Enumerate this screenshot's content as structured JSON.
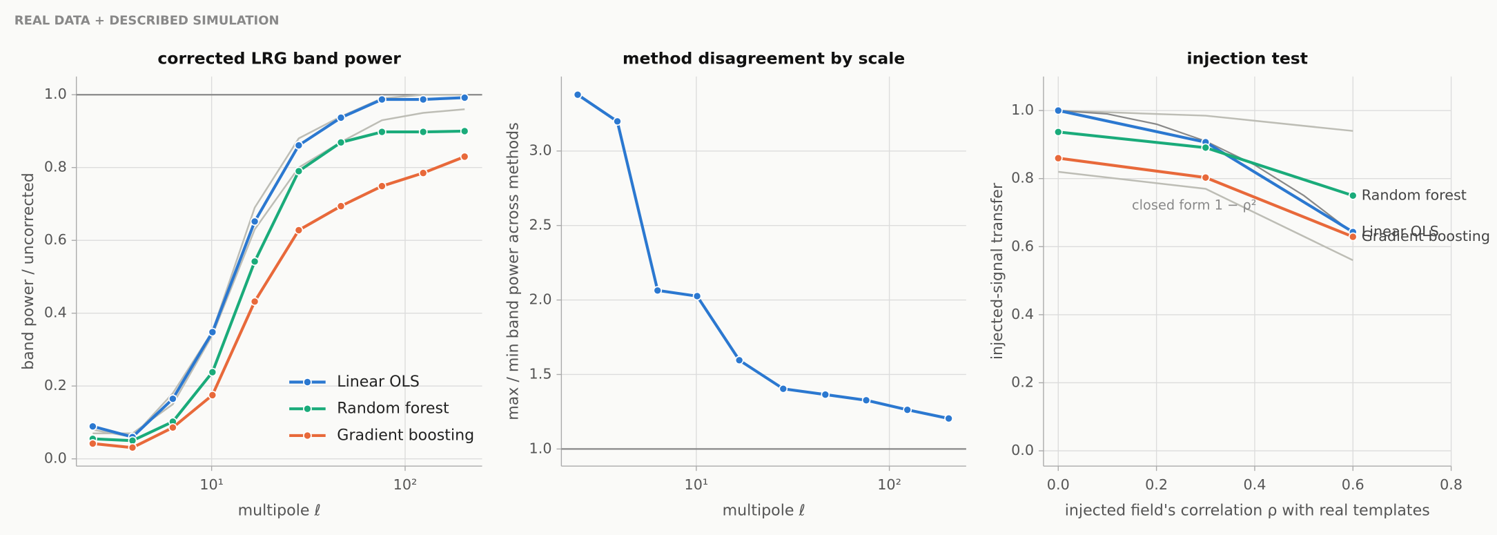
{
  "header": {
    "text": "REAL DATA + DESCRIBED SIMULATION"
  },
  "chart_data": [
    {
      "type": "line",
      "title": "corrected LRG band power",
      "x_label": "multipole ℓ",
      "y_label": "band power / uncorrected",
      "xscale": "log",
      "xlim": [
        2,
        250
      ],
      "ylim": [
        -0.02,
        1.05
      ],
      "xticks": [
        {
          "value": 10,
          "label": "10¹"
        },
        {
          "value": 100,
          "label": "10²"
        }
      ],
      "yticks": [
        {
          "value": 0,
          "label": "0.0"
        },
        0.2,
        0.4,
        0.6,
        0.8,
        {
          "value": 1,
          "label": "1.0"
        }
      ],
      "grid": true,
      "hline": 1,
      "hline_color": "#888888",
      "legend": "lower right",
      "x": [
        2.43,
        3.9,
        6.3,
        10.1,
        16.7,
        28.2,
        46.6,
        75.9,
        124,
        203
      ],
      "reference_series": [
        {
          "color": "#bdbdb5",
          "values": [
            0.08,
            0.06,
            0.18,
            0.35,
            0.69,
            0.88,
            0.94,
            0.99,
            1.0,
            1.0
          ]
        },
        {
          "color": "#bdbdb5",
          "values": [
            0.07,
            0.07,
            0.15,
            0.34,
            0.63,
            0.8,
            0.87,
            0.93,
            0.95,
            0.96
          ]
        }
      ],
      "series": [
        {
          "name": "Linear OLS",
          "color": "#2b78d0",
          "values": [
            0.089,
            0.06,
            0.165,
            0.348,
            0.652,
            0.861,
            0.937,
            0.987,
            0.987,
            0.992
          ]
        },
        {
          "name": "Random forest",
          "color": "#1aab7a",
          "values": [
            0.055,
            0.05,
            0.102,
            0.238,
            0.542,
            0.79,
            0.869,
            0.898,
            0.898,
            0.9
          ]
        },
        {
          "name": "Gradient boosting",
          "color": "#e8693a",
          "values": [
            0.042,
            0.031,
            0.086,
            0.175,
            0.432,
            0.628,
            0.694,
            0.749,
            0.785,
            0.83
          ]
        }
      ]
    },
    {
      "type": "line",
      "title": "method disagreement by scale",
      "x_label": "multipole ℓ",
      "y_label": "max / min band power across methods",
      "xscale": "log",
      "xlim": [
        2,
        250
      ],
      "ylim": [
        0.885,
        3.5
      ],
      "xticks": [
        {
          "value": 10,
          "label": "10¹"
        },
        {
          "value": 100,
          "label": "10²"
        }
      ],
      "yticks": [
        {
          "value": 1,
          "label": "1.0"
        },
        1.5,
        {
          "value": 2,
          "label": "2.0"
        },
        2.5,
        {
          "value": 3,
          "label": "3.0"
        }
      ],
      "grid": true,
      "hline": 1,
      "hline_color": "#888888",
      "x": [
        2.43,
        3.9,
        6.3,
        10.1,
        16.7,
        28.2,
        46.6,
        75.9,
        124,
        203
      ],
      "series": [
        {
          "color": "#2b78d0",
          "values": [
            3.378,
            3.199,
            2.064,
            2.026,
            1.596,
            1.404,
            1.365,
            1.327,
            1.263,
            1.205
          ]
        }
      ]
    },
    {
      "type": "line",
      "title": "injection test",
      "x_label": "injected field's correlation ρ with real templates",
      "y_label": "injected-signal transfer",
      "xscale": "linear",
      "xlim": [
        -0.03,
        0.8
      ],
      "ylim": [
        -0.045,
        1.1
      ],
      "xticks": [
        {
          "value": 0,
          "label": "0.0"
        },
        0.2,
        0.4,
        0.6,
        0.8
      ],
      "yticks": [
        {
          "value": 0,
          "label": "0.0"
        },
        0.2,
        0.4,
        0.6,
        0.8,
        {
          "value": 1,
          "label": "1.0"
        }
      ],
      "grid": true,
      "end_labels": true,
      "x": [
        0,
        0.3,
        0.6
      ],
      "reference_series": [
        {
          "color": "#bdbdb5",
          "values": [
            1.0,
            0.985,
            0.94
          ]
        },
        {
          "color": "#bdbdb5",
          "values": [
            0.82,
            0.77,
            0.56
          ]
        }
      ],
      "closed_form": {
        "label": "closed form 1 − ρ²",
        "color": "#888888",
        "x": [
          0,
          0.1,
          0.2,
          0.3,
          0.4,
          0.5,
          0.6
        ],
        "values": [
          1,
          0.99,
          0.96,
          0.91,
          0.84,
          0.75,
          0.64
        ]
      },
      "series": [
        {
          "name": "Linear OLS",
          "color": "#2b78d0",
          "values": [
            1.0,
            0.907,
            0.643
          ]
        },
        {
          "name": "Random forest",
          "color": "#1aab7a",
          "values": [
            0.937,
            0.891,
            0.75
          ]
        },
        {
          "name": "Gradient boosting",
          "color": "#e8693a",
          "values": [
            0.86,
            0.803,
            0.629
          ]
        }
      ]
    }
  ]
}
